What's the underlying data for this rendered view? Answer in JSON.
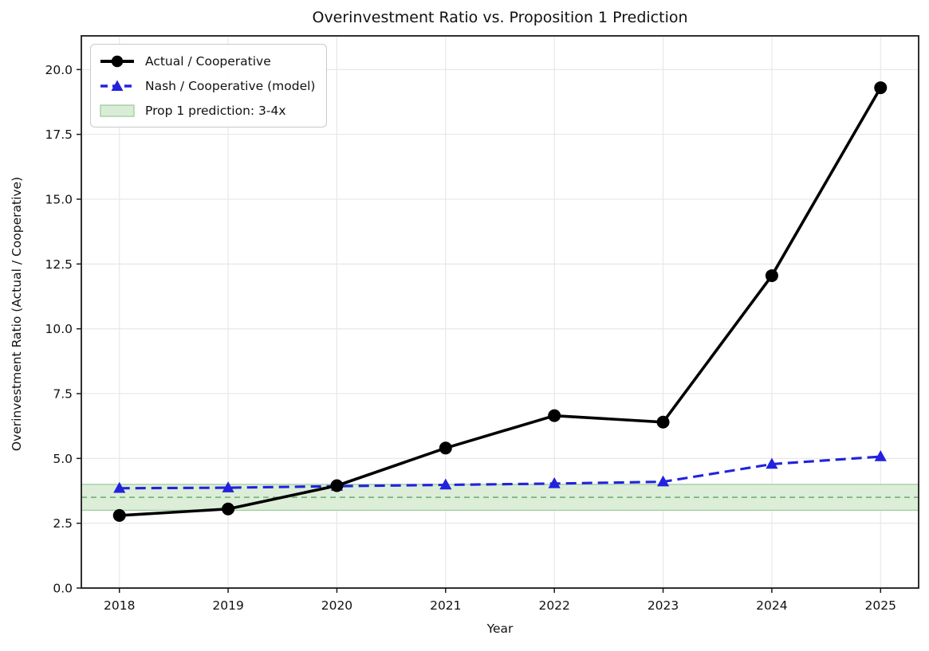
{
  "chart_data": {
    "type": "line",
    "title": "Overinvestment Ratio vs. Proposition 1 Prediction",
    "xlabel": "Year",
    "ylabel": "Overinvestment Ratio (Actual / Cooperative)",
    "x": [
      2018,
      2019,
      2020,
      2021,
      2022,
      2023,
      2024,
      2025
    ],
    "xtick_labels": [
      "2018",
      "2019",
      "2020",
      "2021",
      "2022",
      "2023",
      "2024",
      "2025"
    ],
    "ytick_values": [
      0.0,
      2.5,
      5.0,
      7.5,
      10.0,
      12.5,
      15.0,
      17.5,
      20.0
    ],
    "ytick_labels": [
      "0.0",
      "2.5",
      "5.0",
      "7.5",
      "10.0",
      "12.5",
      "15.0",
      "17.5",
      "20.0"
    ],
    "xlim": [
      2017.65,
      2025.35
    ],
    "ylim": [
      0,
      21.3
    ],
    "grid": true,
    "grid_color": "#e6e6e6",
    "legend_position": "upper-left",
    "series": [
      {
        "name": "Actual / Cooperative",
        "values": [
          2.8,
          3.05,
          3.95,
          5.4,
          6.65,
          6.4,
          12.05,
          19.3
        ],
        "color": "#000000",
        "line_style": "solid",
        "line_width": 3.6,
        "marker": "circle",
        "marker_size": 8
      },
      {
        "name": "Nash / Cooperative (model)",
        "values": [
          3.85,
          3.87,
          3.93,
          3.98,
          4.03,
          4.1,
          4.78,
          5.07
        ],
        "color": "#2222dd",
        "line_style": "dashed",
        "line_width": 3.1,
        "marker": "triangle",
        "marker_size": 8
      }
    ],
    "band": {
      "label": "Prop 1 prediction: 3-4x",
      "ymin": 3.0,
      "ymax": 4.0,
      "midline": 3.5,
      "fill_color": "#dceed8",
      "edge_color": "#9ecb9f",
      "midline_color": "#6cab70",
      "legend_fill": "#d9ecd5",
      "legend_edge": "#a4cfa4"
    }
  }
}
